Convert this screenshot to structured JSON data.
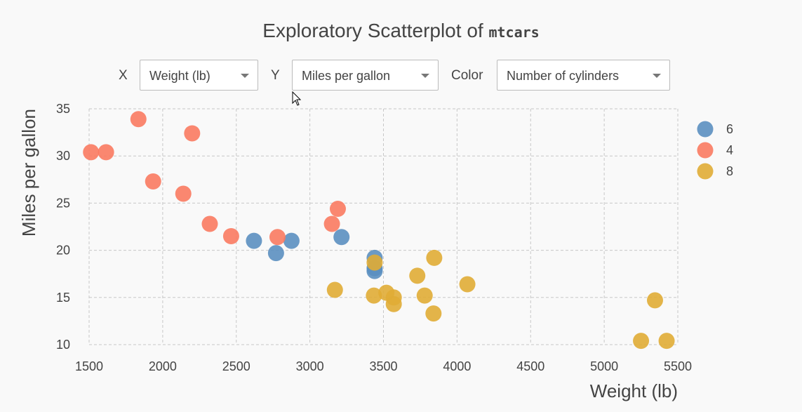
{
  "title": {
    "text": "Exploratory Scatterplot of ",
    "code": "mtcars"
  },
  "controls": {
    "x": {
      "label": "X",
      "value": "Weight (lb)"
    },
    "y": {
      "label": "Y",
      "value": "Miles per gallon"
    },
    "color": {
      "label": "Color",
      "value": "Number of cylinders"
    }
  },
  "chart_data": {
    "type": "scatter",
    "xlabel": "Weight (lb)",
    "ylabel": "Miles per gallon",
    "xlim": [
      1500,
      5500
    ],
    "ylim": [
      10,
      35
    ],
    "xticks": [
      1500,
      2000,
      2500,
      3000,
      3500,
      4000,
      4500,
      5000,
      5500
    ],
    "yticks": [
      10,
      15,
      20,
      25,
      30,
      35
    ],
    "grid": true,
    "legend_position": "right",
    "series": [
      {
        "name": "6",
        "color": "#5b8fc0",
        "points": [
          [
            2620,
            21.0
          ],
          [
            2875,
            21.0
          ],
          [
            3215,
            21.4
          ],
          [
            3440,
            18.1
          ],
          [
            3440,
            19.2
          ],
          [
            3440,
            17.8
          ],
          [
            2770,
            19.7
          ]
        ]
      },
      {
        "name": "4",
        "color": "#fa7a60",
        "points": [
          [
            2320,
            22.8
          ],
          [
            3190,
            24.4
          ],
          [
            3150,
            22.8
          ],
          [
            2200,
            32.4
          ],
          [
            1615,
            30.4
          ],
          [
            1835,
            33.9
          ],
          [
            2465,
            21.5
          ],
          [
            1935,
            27.3
          ],
          [
            2140,
            26.0
          ],
          [
            1513,
            30.4
          ],
          [
            2780,
            21.4
          ]
        ]
      },
      {
        "name": "8",
        "color": "#e0ac35",
        "points": [
          [
            3440,
            18.7
          ],
          [
            3570,
            14.3
          ],
          [
            4070,
            16.4
          ],
          [
            3730,
            17.3
          ],
          [
            3780,
            15.2
          ],
          [
            5250,
            10.4
          ],
          [
            5424,
            10.4
          ],
          [
            5345,
            14.7
          ],
          [
            3520,
            15.5
          ],
          [
            3435,
            15.2
          ],
          [
            3840,
            13.3
          ],
          [
            3845,
            19.2
          ],
          [
            3170,
            15.8
          ],
          [
            3570,
            15.0
          ]
        ]
      }
    ]
  }
}
